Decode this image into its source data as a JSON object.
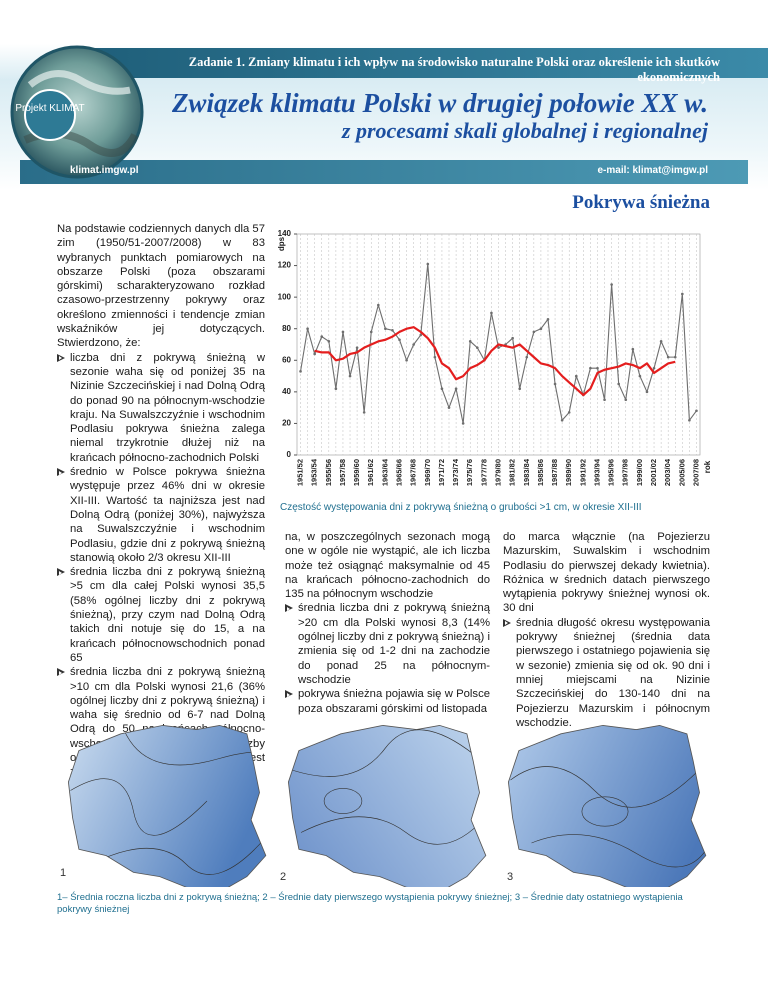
{
  "header": {
    "task": "Zadanie 1. Zmiany klimatu i ich wpływ na środowisko naturalne Polski oraz określenie ich skutków ekonomicznych",
    "logo": "Projekt KLIMAT",
    "title_line1": "Związek klimatu Polski w drugiej połowie XX w.",
    "title_line2": "z procesami skali globalnej i regionalnej",
    "website": "klimat.imgw.pl",
    "email": "e-mail: klimat@imgw.pl"
  },
  "section_title": "Pokrywa śnieżna",
  "left_column": {
    "intro": "Na podstawie codziennych danych dla 57 zim (1950/51-2007/2008) w 83 wybranych punktach pomiarowych na obszarze Polski (poza obszarami górskimi) scharakteryzowano rozkład czasowo-przestrzenny pokrywy oraz określono zmienności i tendencje zmian wskaźników jej dotyczących. Stwierdzono, że:",
    "bullets": [
      "liczba dni z pokrywą śnieżną w sezonie waha się od poniżej 35 na Nizinie Szczecińskiej i nad Dolną Odrą do ponad 90 na północnym-wschodzie kraju. Na Suwalszczyźnie i wschodnim Podlasiu pokrywa śnieżna zalega niemal trzykrotnie dłużej niż na krańcach północno-zachodnich Polski",
      "średnio w Polsce pokrywa śnieżna występuje przez 46% dni w okresie XII-III. Wartość ta najniższa jest nad Dolną Odrą (poniżej 30%), najwyższa na Suwalszczyźnie i wschodnim Podlasiu, gdzie dni z pokrywą śnieżną stanowią około 2/3 okresu XII-III",
      "średnia liczba dni z pokrywą śnieżną >5 cm dla całej Polski wynosi 35,5 (58% ogólnej liczby dni z pokrywą śnieżną), przy czym nad Dolną Odrą takich dni notuje się do 15, a na krańcach północnowschodnich ponad 65",
      "średnia liczba dni z pokrywą śnieżną >10 cm dla Polski wynosi 21,6 (36% ogólnej liczby dni z pokrywą śnieżną) i waha się średnio od 6-7 nad Dolną Odrą do 50 na krańcach północno-wschodnich. Zmienność liczby omawianych dni z roku na rok jest znacz-"
    ]
  },
  "middle_column": {
    "continuation": "na, w poszczególnych sezonach mogą one w ogóle nie wystąpić, ale ich liczba może też osiągnąć maksymalnie od 45 na krańcach północno-zachodnich do 135 na północnym wschodzie",
    "bullets": [
      "średnia liczba dni z pokrywą śnieżną >20 cm dla Polski wynosi 8,3 (14% ogólnej liczby dni z pokrywą śnieżną) i zmienia się od 1-2 dni na zachodzie do ponad 25 na północnym-wschodzie",
      "pokrywa śnieżna pojawia się w Polsce poza obszarami górskimi od listopada"
    ]
  },
  "right_column": {
    "continuation": "do marca włącznie (na Pojezierzu Mazurskim, Suwalskim i wschodnim Podlasiu do pierwszej dekady kwietnia). Różnica w średnich datach pierwszego wytąpienia pokrywy śnieżnej wynosi ok. 30 dni",
    "bullets": [
      "średnia długość okresu występowania pokrywy śnieżnej (średnia data pierwszego i ostatniego pojawienia się w sezonie) zmienia się od ok. 90 dni i mniej miejscami na Nizinie Szczecińskiej do 130-140 dni na Pojezierzu Mazurskim i północnym wschodzie."
    ]
  },
  "chart_data": {
    "type": "line",
    "y_label": "dps",
    "x_label": "rok",
    "caption": "Częstość występowania dni z pokrywą śnieżną o grubości >1 cm, w okresie XII-III",
    "categories": [
      "1951/52",
      null,
      "1953/54",
      null,
      "1955/56",
      null,
      "1957/58",
      null,
      "1959/60",
      null,
      "1961/62",
      null,
      "1963/64",
      null,
      "1965/66",
      null,
      "1967/68",
      null,
      "1969/70",
      null,
      "1971/72",
      null,
      "1973/74",
      null,
      "1975/76",
      null,
      "1977/78",
      null,
      "1979/80",
      null,
      "1981/82",
      null,
      "1983/84",
      null,
      "1985/86",
      null,
      "1987/88",
      null,
      "1989/90",
      null,
      "1991/92",
      null,
      "1993/94",
      null,
      "1995/96",
      null,
      "1997/98",
      null,
      "1999/00",
      null,
      "2001/02",
      null,
      "2003/04",
      null,
      "2005/06",
      null,
      "2007/08"
    ],
    "series": [
      {
        "color": "#6e6e6e",
        "values": [
          53,
          80,
          64,
          75,
          72,
          42,
          78,
          50,
          68,
          27,
          78,
          95,
          80,
          79,
          73,
          60,
          70,
          76,
          121,
          62,
          42,
          30,
          42,
          20,
          72,
          68,
          60,
          90,
          68,
          70,
          74,
          42,
          62,
          78,
          80,
          86,
          45,
          22,
          27,
          50,
          38,
          55,
          55,
          35,
          108,
          45,
          35,
          67,
          50,
          40,
          55,
          72,
          62,
          62,
          102,
          22,
          28
        ]
      },
      {
        "color": "#e41e1e",
        "values": [
          null,
          null,
          66,
          65,
          65,
          60,
          61,
          64,
          65,
          68,
          70,
          72,
          73,
          75,
          78,
          80,
          81,
          78,
          74,
          68,
          58,
          55,
          48,
          50,
          55,
          57,
          60,
          66,
          70,
          69,
          68,
          70,
          66,
          62,
          58,
          57,
          55,
          50,
          46,
          42,
          38,
          42,
          52,
          54,
          55,
          56,
          58,
          57,
          55,
          58,
          52,
          55,
          58,
          59,
          null,
          null,
          null
        ]
      }
    ],
    "ylim": [
      0,
      140
    ],
    "yticks": [
      0,
      20,
      40,
      60,
      80,
      100,
      120,
      140
    ],
    "grid": true
  },
  "maps": {
    "labels": [
      "1",
      "2",
      "3"
    ],
    "caption": "1– Średnia roczna liczba dni z pokrywą śnieżną; 2 – Średnie daty pierwszego wystąpienia pokrywy śnieżnej; 3 – Średnie daty ostatniego wystąpienia pokrywy śnieżnej"
  }
}
